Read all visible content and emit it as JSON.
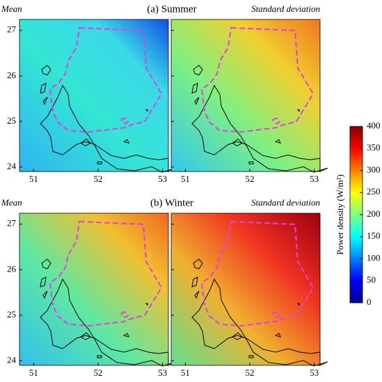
{
  "rows": [
    {
      "title": "(a) Summer",
      "panels": [
        {
          "label": "Mean"
        },
        {
          "label": "Standard deviation"
        }
      ]
    },
    {
      "title": "(b) Winter",
      "panels": [
        {
          "label": "Mean"
        },
        {
          "label": "Standard deviation"
        }
      ]
    }
  ],
  "xlim": [
    50.78,
    53.09
  ],
  "xticks": [
    51,
    52,
    53
  ],
  "ylim": [
    23.9,
    27.24
  ],
  "yticks": [
    24,
    25,
    26,
    27
  ],
  "colorbar": {
    "label": "Power density (W/m²)",
    "lim": [
      0,
      400
    ],
    "ticks": [
      0,
      50,
      100,
      150,
      200,
      250,
      300,
      350,
      400
    ]
  }
}
